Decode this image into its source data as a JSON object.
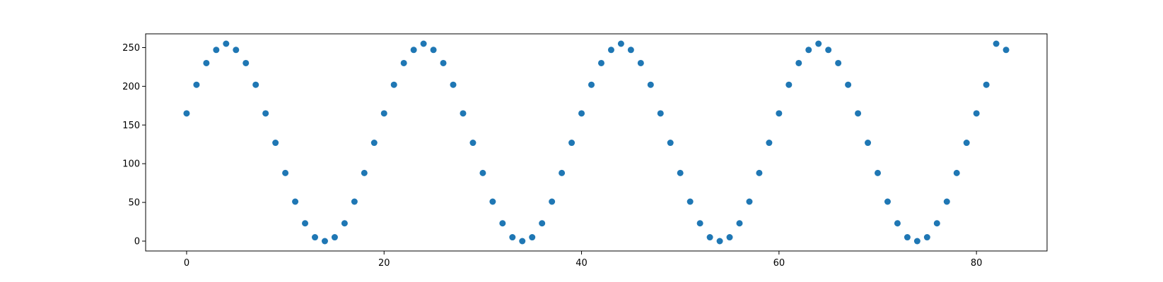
{
  "chart_data": {
    "type": "scatter",
    "title": "",
    "xlabel": "",
    "ylabel": "",
    "xlim": [
      -4.15,
      87.15
    ],
    "ylim": [
      -12.75,
      267.75
    ],
    "xticks": [
      0,
      20,
      40,
      60,
      80
    ],
    "yticks": [
      0,
      50,
      100,
      150,
      200,
      250
    ],
    "xtick_labels": [
      "0",
      "20",
      "40",
      "60",
      "80"
    ],
    "ytick_labels": [
      "0",
      "50",
      "100",
      "150",
      "200",
      "250"
    ],
    "grid": false,
    "marker_color": "#1f77b4",
    "series": [
      {
        "x": [
          0,
          1,
          2,
          3,
          4,
          5,
          6,
          7,
          8,
          9,
          10,
          11,
          12,
          13,
          14,
          15,
          16,
          17,
          18,
          19,
          20,
          21,
          22,
          23,
          24,
          25,
          26,
          27,
          28,
          29,
          30,
          31,
          32,
          33,
          34,
          35,
          36,
          37,
          38,
          39,
          40,
          41,
          42,
          43,
          44,
          45,
          46,
          47,
          48,
          49,
          50,
          51,
          52,
          53,
          54,
          55,
          56,
          57,
          58,
          59,
          60,
          61,
          62,
          63,
          64,
          65,
          66,
          67,
          68,
          69,
          70,
          71,
          72,
          73,
          74,
          75,
          76,
          77,
          78,
          79,
          80,
          81,
          82,
          83
        ],
        "y": [
          165,
          202,
          230,
          247,
          255,
          247,
          230,
          202,
          165,
          127,
          88,
          51,
          23,
          5,
          0,
          5,
          23,
          51,
          88,
          127,
          165,
          202,
          230,
          247,
          255,
          247,
          230,
          202,
          165,
          127,
          88,
          51,
          23,
          5,
          0,
          5,
          23,
          51,
          88,
          127,
          165,
          202,
          230,
          247,
          255,
          247,
          230,
          202,
          165,
          127,
          88,
          51,
          23,
          5,
          0,
          5,
          23,
          51,
          88,
          127,
          165,
          202,
          230,
          247,
          255,
          247,
          230,
          202,
          165,
          127,
          88,
          51,
          23,
          5,
          0,
          5,
          23,
          51,
          88,
          127,
          165,
          202,
          255,
          247
        ]
      }
    ]
  }
}
